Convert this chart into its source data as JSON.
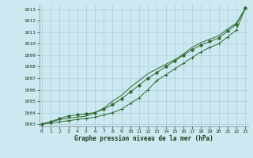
{
  "x": [
    0,
    1,
    2,
    3,
    4,
    5,
    6,
    7,
    8,
    9,
    10,
    11,
    12,
    13,
    14,
    15,
    16,
    17,
    18,
    19,
    20,
    21,
    22,
    23
  ],
  "line1": [
    1003.0,
    1003.1,
    1003.2,
    1003.3,
    1003.4,
    1003.5,
    1003.6,
    1003.8,
    1004.0,
    1004.3,
    1004.8,
    1005.3,
    1006.0,
    1006.8,
    1007.3,
    1007.8,
    1008.3,
    1008.8,
    1009.3,
    1009.7,
    1010.0,
    1010.6,
    1011.2,
    1013.1
  ],
  "line2": [
    1003.0,
    1003.2,
    1003.5,
    1003.7,
    1003.8,
    1003.9,
    1004.0,
    1004.3,
    1004.7,
    1005.2,
    1005.8,
    1006.4,
    1007.0,
    1007.5,
    1008.0,
    1008.5,
    1009.0,
    1009.5,
    1009.9,
    1010.2,
    1010.5,
    1011.1,
    1011.7,
    1013.1
  ],
  "line3": [
    1003.0,
    1003.2,
    1003.4,
    1003.5,
    1003.6,
    1003.7,
    1004.0,
    1004.4,
    1005.0,
    1005.5,
    1006.2,
    1006.8,
    1007.4,
    1007.8,
    1008.2,
    1008.6,
    1009.1,
    1009.7,
    1010.1,
    1010.4,
    1010.7,
    1011.3,
    1011.8,
    1013.1
  ],
  "line_color": "#2d6a2d",
  "bg_color": "#cde8f0",
  "grid_color": "#a8cfd8",
  "text_color": "#1a3a1a",
  "xlabel": "Graphe pression niveau de la mer (hPa)",
  "ylim": [
    1002.8,
    1013.4
  ],
  "xlim": [
    -0.3,
    23.3
  ],
  "yticks": [
    1003,
    1004,
    1005,
    1006,
    1007,
    1008,
    1009,
    1010,
    1011,
    1012,
    1013
  ],
  "xticks": [
    0,
    1,
    2,
    3,
    4,
    5,
    6,
    7,
    8,
    9,
    10,
    11,
    12,
    13,
    14,
    15,
    16,
    17,
    18,
    19,
    20,
    21,
    22,
    23
  ]
}
